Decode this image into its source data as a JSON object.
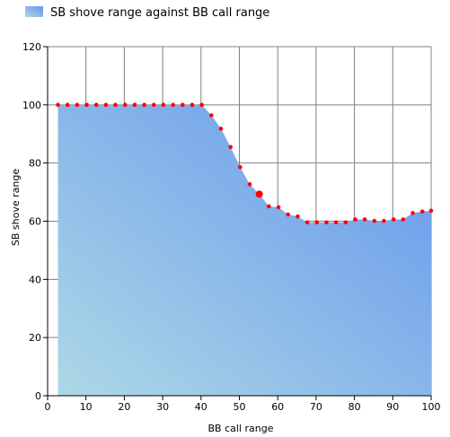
{
  "chart_data": {
    "type": "area",
    "title": "",
    "legend": {
      "position": "top-left",
      "entries": [
        "SB shove range against BB call range"
      ]
    },
    "xlabel": "BB call range",
    "ylabel": "SB shove range",
    "xlim": [
      0,
      100
    ],
    "ylim": [
      0,
      120
    ],
    "x_ticks": [
      "0",
      "10",
      "20",
      "30",
      "40",
      "50",
      "60",
      "70",
      "80",
      "90",
      "100"
    ],
    "y_ticks": [
      "0",
      "20",
      "40",
      "60",
      "80",
      "100",
      "120"
    ],
    "grid": true,
    "colors": {
      "fill_start": "#add8e6",
      "fill_end": "#6495ed",
      "marker": "#ff0000",
      "grid": "#808080",
      "axis": "#000000"
    },
    "series": [
      {
        "name": "SB shove range against BB call range",
        "x": [
          2.7,
          5.2,
          7.7,
          10.2,
          12.7,
          15.2,
          17.7,
          20.2,
          22.7,
          25.2,
          27.7,
          30.2,
          32.7,
          35.2,
          37.7,
          40.2,
          42.7,
          45.2,
          47.7,
          50.2,
          52.7,
          55.2,
          57.7,
          60.2,
          62.7,
          65.2,
          67.7,
          70.2,
          72.7,
          75.2,
          77.7,
          80.2,
          82.7,
          85.2,
          87.7,
          90.2,
          92.7,
          95.2,
          97.7,
          100
        ],
        "y": [
          100,
          100,
          100,
          100,
          100,
          100,
          100,
          100,
          100,
          100,
          100,
          100,
          100,
          100,
          100,
          100,
          96.4,
          91.8,
          85.5,
          78.6,
          72.7,
          69.3,
          65.1,
          64.8,
          62.3,
          61.6,
          59.6,
          59.6,
          59.6,
          59.6,
          59.6,
          60.6,
          60.6,
          60.1,
          60.1,
          60.6,
          60.6,
          62.8,
          63.3,
          63.6
        ],
        "highlight_index": 21
      }
    ]
  }
}
